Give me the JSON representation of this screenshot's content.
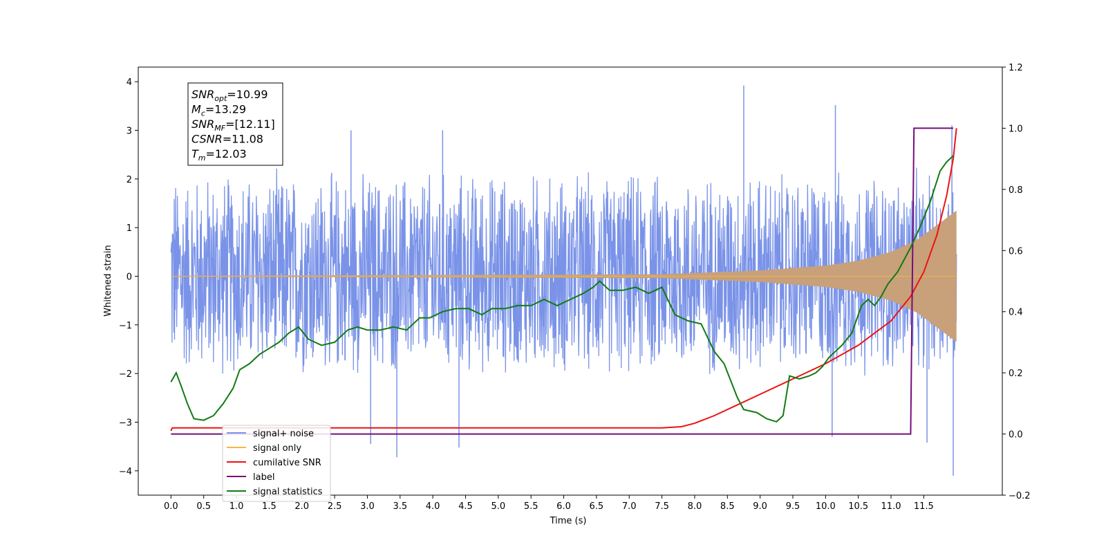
{
  "chart_data": {
    "type": "line",
    "xlabel": "Time (s)",
    "ylabel": "Whitened strain",
    "xlim": [
      -0.5,
      12.7
    ],
    "ylim": [
      -4.5,
      4.3
    ],
    "y2lim": [
      -0.2,
      1.2
    ],
    "x_ticks": [
      0.0,
      0.5,
      1.0,
      1.5,
      2.0,
      2.5,
      3.0,
      3.5,
      4.0,
      4.5,
      5.0,
      5.5,
      6.0,
      6.5,
      7.0,
      7.5,
      8.0,
      8.5,
      9.0,
      9.5,
      10.0,
      10.5,
      11.0,
      11.5
    ],
    "x_tick_labels": [
      "0.0",
      "0.5",
      "1.0",
      "1.5",
      "2.0",
      "2.5",
      "3.0",
      "3.5",
      "4.0",
      "4.5",
      "5.0",
      "5.5",
      "6.0",
      "6.5",
      "7.0",
      "7.5",
      "8.0",
      "8.5",
      "9.0",
      "9.5",
      "10.0",
      "10.5",
      "11.0",
      "11.5"
    ],
    "y_ticks": [
      -4,
      -3,
      -2,
      -1,
      0,
      1,
      2,
      3,
      4
    ],
    "y_tick_labels": [
      "−4",
      "−3",
      "−2",
      "−1",
      "0",
      "1",
      "2",
      "3",
      "4"
    ],
    "y2_ticks": [
      -0.2,
      0.0,
      0.2,
      0.4,
      0.6,
      0.8,
      1.0,
      1.2
    ],
    "y2_tick_labels": [
      "−0.2",
      "0.0",
      "0.2",
      "0.4",
      "0.6",
      "0.8",
      "1.0",
      "1.2"
    ],
    "grid": false,
    "legend_position": "lower-left",
    "annotation": {
      "lines": [
        {
          "base": "SNR",
          "sub": "opt",
          "rest": "=10.99"
        },
        {
          "base": "M",
          "sub": "c",
          "rest": "=13.29"
        },
        {
          "base": "SNR",
          "sub": "MF",
          "rest": "=[12.11]"
        },
        {
          "base": "CSNR",
          "sub": "",
          "rest": "=11.08"
        },
        {
          "base": "T",
          "sub": "m",
          "rest": "=12.03"
        }
      ]
    },
    "series": [
      {
        "name": "signal+ noise",
        "axis": "left",
        "color": "#7a93e8",
        "note": "whitened noisy strain, roughly -2.5 to 2.5 with spikes",
        "x_range": [
          0.0,
          12.0
        ],
        "envelope_upper": 2.3,
        "envelope_lower": -2.2,
        "spikes": [
          {
            "x": 8.75,
            "y": 3.92
          },
          {
            "x": 10.15,
            "y": 3.52
          },
          {
            "x": 11.93,
            "y": 3.1
          },
          {
            "x": 3.45,
            "y": -3.72
          },
          {
            "x": 11.95,
            "y": -4.1
          },
          {
            "x": 3.05,
            "y": -3.45
          },
          {
            "x": 4.4,
            "y": -3.52
          },
          {
            "x": 11.55,
            "y": -3.42
          },
          {
            "x": 10.1,
            "y": -3.3
          },
          {
            "x": 2.75,
            "y": 3.0
          },
          {
            "x": 4.15,
            "y": 3.0
          }
        ]
      },
      {
        "name": "signal only",
        "axis": "left",
        "color": "#f5b841",
        "fill_color": "#c8a07a",
        "note": "chirp waveform, amplitude grows toward merger",
        "x_range": [
          0.0,
          12.0
        ],
        "amplitude_x": [
          0.0,
          7.5,
          9.0,
          10.0,
          10.5,
          11.0,
          11.4,
          11.7,
          12.0
        ],
        "amplitude_y": [
          0.01,
          0.04,
          0.12,
          0.22,
          0.32,
          0.5,
          0.75,
          1.05,
          1.35
        ]
      },
      {
        "name": "cumilative SNR",
        "axis": "right",
        "color": "#ee1111",
        "x": [
          0.0,
          0.02,
          7.5,
          7.8,
          8.0,
          8.3,
          8.6,
          9.0,
          9.5,
          10.0,
          10.5,
          11.0,
          11.3,
          11.5,
          11.7,
          11.85,
          11.95,
          12.0
        ],
        "y": [
          0.01,
          0.02,
          0.02,
          0.024,
          0.035,
          0.06,
          0.09,
          0.13,
          0.18,
          0.23,
          0.29,
          0.37,
          0.45,
          0.53,
          0.65,
          0.78,
          0.9,
          1.0
        ]
      },
      {
        "name": "label",
        "axis": "right",
        "color": "#750d7a",
        "x": [
          0.0,
          11.3,
          11.35,
          11.95
        ],
        "y": [
          0.0,
          0.0,
          1.0,
          1.0
        ]
      },
      {
        "name": "signal statistics",
        "axis": "right",
        "color": "#117a11",
        "x": [
          0.0,
          0.08,
          0.15,
          0.25,
          0.35,
          0.5,
          0.65,
          0.8,
          0.95,
          1.05,
          1.2,
          1.35,
          1.5,
          1.65,
          1.8,
          1.95,
          2.1,
          2.3,
          2.5,
          2.7,
          2.85,
          3.0,
          3.2,
          3.4,
          3.6,
          3.8,
          3.95,
          4.15,
          4.35,
          4.55,
          4.75,
          4.9,
          5.1,
          5.3,
          5.5,
          5.7,
          5.9,
          6.1,
          6.3,
          6.45,
          6.55,
          6.7,
          6.9,
          7.1,
          7.3,
          7.5,
          7.7,
          7.9,
          8.1,
          8.3,
          8.45,
          8.65,
          8.75,
          8.95,
          9.1,
          9.25,
          9.35,
          9.45,
          9.6,
          9.75,
          9.85,
          9.95,
          10.05,
          10.15,
          10.25,
          10.4,
          10.55,
          10.65,
          10.75,
          10.85,
          10.95,
          11.1,
          11.3,
          11.45,
          11.6,
          11.75,
          11.85,
          11.95
        ],
        "y": [
          0.17,
          0.2,
          0.16,
          0.1,
          0.05,
          0.045,
          0.06,
          0.1,
          0.15,
          0.21,
          0.23,
          0.26,
          0.28,
          0.3,
          0.33,
          0.35,
          0.31,
          0.29,
          0.3,
          0.34,
          0.35,
          0.34,
          0.34,
          0.35,
          0.34,
          0.38,
          0.38,
          0.4,
          0.41,
          0.41,
          0.39,
          0.41,
          0.41,
          0.42,
          0.42,
          0.44,
          0.42,
          0.44,
          0.46,
          0.48,
          0.5,
          0.47,
          0.47,
          0.48,
          0.46,
          0.48,
          0.39,
          0.37,
          0.36,
          0.27,
          0.23,
          0.12,
          0.08,
          0.07,
          0.05,
          0.04,
          0.06,
          0.19,
          0.18,
          0.19,
          0.2,
          0.22,
          0.25,
          0.27,
          0.29,
          0.33,
          0.42,
          0.44,
          0.42,
          0.45,
          0.49,
          0.53,
          0.61,
          0.68,
          0.76,
          0.86,
          0.89,
          0.91
        ]
      }
    ]
  }
}
